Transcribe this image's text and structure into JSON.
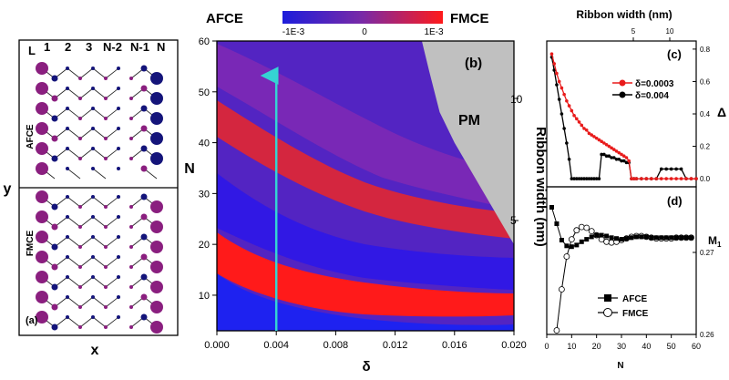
{
  "colors": {
    "afce": "#1d1ddb",
    "fmce": "#ff1a1a",
    "mid": "#7a2aa6",
    "pm": "#c0c0c0",
    "arrow": "#35d3d3",
    "atom_blue": "#14147a",
    "atom_purple": "#8a1f7f",
    "red": "#e81b1b",
    "black": "#000000"
  },
  "panel_a": {
    "label": "(a)",
    "col_labels": [
      "L",
      "1",
      "2",
      "3",
      "N-2",
      "N-1",
      "N"
    ],
    "row_labels": [
      "AFCE",
      "FMCE"
    ],
    "xlabel": "x",
    "ylabel": "y"
  },
  "colorbar": {
    "left_label": "AFCE",
    "right_label": "FMCE",
    "ticks": [
      "-1E-3",
      "0",
      "1E-3"
    ],
    "range": [
      -0.001,
      0.001
    ]
  },
  "panel_b": {
    "label": "(b)",
    "region_label": "PM",
    "xlabel": "δ",
    "ylabel": "N",
    "ylabel_right": "Ribbon width (nm)",
    "xticks": [
      "0.000",
      "0.004",
      "0.008",
      "0.012",
      "0.016",
      "0.020"
    ],
    "yticks": [
      "10",
      "20",
      "30",
      "40",
      "50",
      "60"
    ],
    "yticks_right": [
      "5",
      "10"
    ],
    "arrow_delta": 0.004
  },
  "panel_c": {
    "label": "(c)",
    "top_axis_label": "Ribbon width (nm)",
    "top_ticks": [
      "5",
      "10"
    ],
    "ylabel": "Δ",
    "yticks": [
      "0.0",
      "0.2",
      "0.4",
      "0.6",
      "0.8"
    ],
    "legend": [
      "δ=0.0003",
      "δ=0.004"
    ]
  },
  "panel_d": {
    "label": "(d)",
    "xlabel": "N",
    "ylabel": "M",
    "ylabel_sub": "1",
    "xticks": [
      "0",
      "10",
      "20",
      "30",
      "40",
      "50",
      "60"
    ],
    "yticks": [
      "0.26",
      "0.27"
    ],
    "legend": [
      "AFCE",
      "FMCE"
    ]
  },
  "chart_data": [
    {
      "type": "line",
      "panel": "c",
      "title": "",
      "xlabel": "N",
      "ylabel": "Δ",
      "xlim": [
        0,
        60
      ],
      "ylim": [
        -0.05,
        0.85
      ],
      "series": [
        {
          "name": "δ=0.0003",
          "x": [
            2,
            3,
            4,
            5,
            6,
            7,
            8,
            9,
            10,
            11,
            12,
            13,
            14,
            15,
            16,
            17,
            18,
            19,
            20,
            21,
            22,
            23,
            24,
            25,
            26,
            27,
            28,
            29,
            30,
            31,
            32,
            33,
            34,
            35,
            36,
            38,
            40,
            42,
            44,
            46,
            48,
            50,
            52,
            54,
            56,
            58,
            60
          ],
          "y": [
            0.77,
            0.71,
            0.65,
            0.6,
            0.56,
            0.52,
            0.48,
            0.45,
            0.42,
            0.39,
            0.37,
            0.35,
            0.33,
            0.31,
            0.3,
            0.28,
            0.27,
            0.26,
            0.25,
            0.24,
            0.23,
            0.22,
            0.21,
            0.2,
            0.19,
            0.18,
            0.17,
            0.16,
            0.15,
            0.14,
            0.13,
            0.11,
            0.0,
            0.0,
            0.0,
            0.0,
            0.0,
            0.0,
            0.0,
            0.0,
            0.0,
            0.0,
            0.0,
            0.0,
            0.0,
            0.0,
            0.0
          ]
        },
        {
          "name": "δ=0.004",
          "x": [
            2,
            3,
            4,
            5,
            6,
            7,
            8,
            9,
            10,
            11,
            12,
            13,
            14,
            15,
            16,
            17,
            18,
            19,
            20,
            21,
            22,
            23,
            24,
            25,
            26,
            27,
            28,
            29,
            30,
            31,
            32,
            33,
            34,
            35,
            36,
            38,
            40,
            42,
            44,
            46,
            48,
            50,
            52,
            54,
            56,
            58,
            60
          ],
          "y": [
            0.75,
            0.67,
            0.58,
            0.49,
            0.4,
            0.31,
            0.22,
            0.12,
            0.0,
            0.0,
            0.0,
            0.0,
            0.0,
            0.0,
            0.0,
            0.0,
            0.0,
            0.0,
            0.0,
            0.0,
            0.15,
            0.15,
            0.14,
            0.14,
            0.13,
            0.13,
            0.12,
            0.12,
            0.11,
            0.11,
            0.1,
            0.1,
            0.0,
            0.0,
            0.0,
            0.0,
            0.0,
            0.0,
            0.0,
            0.06,
            0.06,
            0.06,
            0.06,
            0.06,
            0.0,
            0.0,
            0.0
          ]
        }
      ]
    },
    {
      "type": "line",
      "panel": "d",
      "title": "",
      "xlabel": "N",
      "ylabel": "M1",
      "xlim": [
        0,
        60
      ],
      "ylim": [
        0.26,
        0.278
      ],
      "series": [
        {
          "name": "AFCE",
          "x": [
            2,
            4,
            6,
            8,
            10,
            12,
            14,
            16,
            18,
            20,
            22,
            24,
            26,
            28,
            30,
            32,
            34,
            36,
            38,
            40,
            42,
            44,
            46,
            48,
            50,
            52,
            54,
            56,
            58
          ],
          "y": [
            0.2755,
            0.2735,
            0.2715,
            0.2708,
            0.2707,
            0.2709,
            0.2713,
            0.2716,
            0.2719,
            0.2721,
            0.2721,
            0.272,
            0.2718,
            0.2717,
            0.2716,
            0.2717,
            0.2718,
            0.2719,
            0.2719,
            0.2719,
            0.2718,
            0.2718,
            0.2718,
            0.2718,
            0.2718,
            0.2718,
            0.2718,
            0.2718,
            0.2718
          ]
        },
        {
          "name": "FMCE",
          "x": [
            4,
            6,
            8,
            10,
            12,
            14,
            16,
            18,
            20,
            22,
            24,
            26,
            28,
            30,
            32,
            34,
            36,
            38,
            40,
            42,
            44,
            46,
            48,
            50,
            52,
            54,
            56,
            58
          ],
          "y": [
            0.2605,
            0.2655,
            0.2695,
            0.2716,
            0.2727,
            0.2731,
            0.273,
            0.2726,
            0.2721,
            0.2716,
            0.2713,
            0.2712,
            0.2713,
            0.2715,
            0.2717,
            0.2719,
            0.272,
            0.272,
            0.2719,
            0.2718,
            0.2717,
            0.2717,
            0.2717,
            0.2717,
            0.2718,
            0.2718,
            0.2718,
            0.2718
          ]
        }
      ]
    },
    {
      "type": "heatmap",
      "panel": "b",
      "title": "",
      "xlabel": "δ",
      "ylabel": "N",
      "xlim": [
        0,
        0.02
      ],
      "ylim": [
        3,
        60
      ],
      "zlim": [
        -0.001,
        0.001
      ],
      "pm_boundary": {
        "delta": [
          0.0138,
          0.0143,
          0.015,
          0.016,
          0.017,
          0.018,
          0.019,
          0.02
        ],
        "N": [
          60,
          54,
          46,
          40,
          35,
          30,
          25,
          20
        ]
      }
    }
  ]
}
